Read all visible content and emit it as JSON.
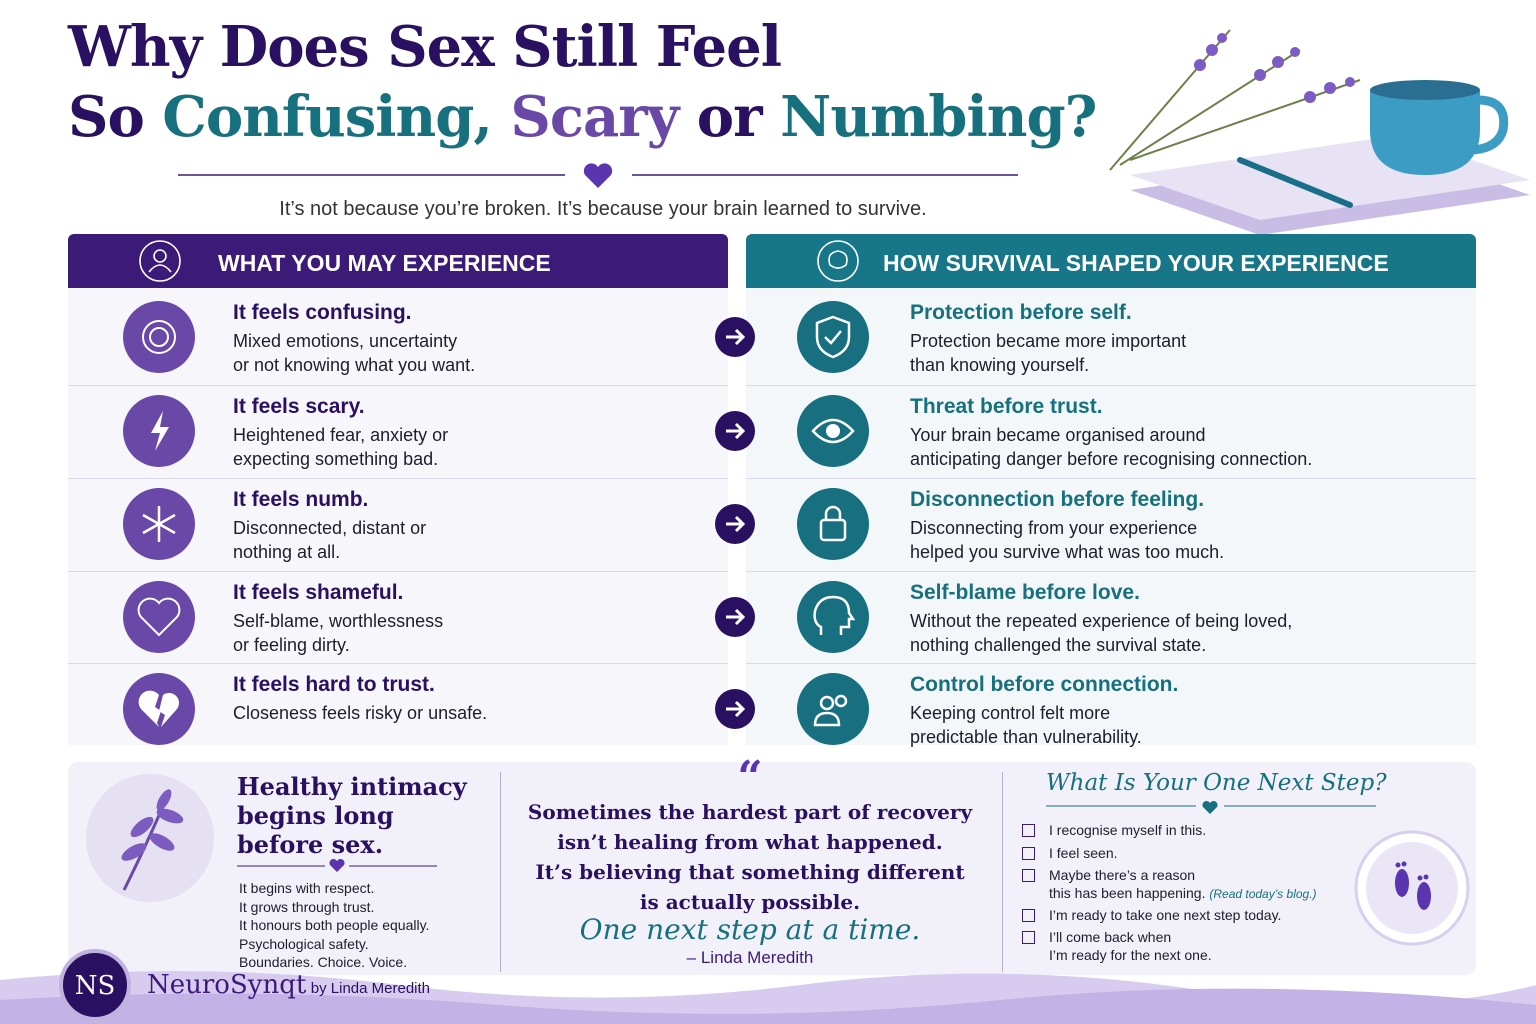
{
  "header": {
    "title_line1": "Why Does Sex Still Feel",
    "title_line2": [
      {
        "text": "So",
        "color": "#2a1060"
      },
      {
        "text": "Confusing,",
        "color": "#16707e"
      },
      {
        "text": "Scary",
        "color": "#6a48a8"
      },
      {
        "text": "or",
        "color": "#2a1060"
      },
      {
        "text": "Numbing?",
        "color": "#16707e"
      }
    ],
    "subtitle": "It’s not because you’re broken. It’s because your brain learned to survive."
  },
  "left_panel": {
    "heading": "WHAT YOU MAY EXPERIENCE",
    "items": [
      {
        "title": "It feels confusing.",
        "lines": [
          "Mixed emotions, uncertainty",
          "or not knowing what you want."
        ]
      },
      {
        "title": "It feels scary.",
        "lines": [
          "Heightened fear, anxiety or",
          "expecting something bad."
        ]
      },
      {
        "title": "It feels numb.",
        "lines": [
          "Disconnected, distant or",
          "nothing at all."
        ]
      },
      {
        "title": "It feels shameful.",
        "lines": [
          "Self-blame, worthlessness",
          "or feeling dirty."
        ]
      },
      {
        "title": "It feels hard to trust.",
        "lines": [
          "Closeness feels risky or unsafe."
        ]
      }
    ]
  },
  "right_panel": {
    "heading": "HOW SURVIVAL SHAPED YOUR EXPERIENCE",
    "items": [
      {
        "title": "Protection before self.",
        "lines": [
          "Protection became more important",
          "than knowing yourself."
        ]
      },
      {
        "title": "Threat before trust.",
        "lines": [
          "Your brain became organised around",
          "anticipating danger before recognising connection."
        ]
      },
      {
        "title": "Disconnection before feeling.",
        "lines": [
          "Disconnecting from your experience",
          "helped you survive what was too much."
        ]
      },
      {
        "title": "Self-blame before love.",
        "lines": [
          "Without the repeated experience of being loved,",
          "nothing challenged the survival state."
        ]
      },
      {
        "title": "Control before connection.",
        "lines": [
          "Keeping control felt more",
          "predictable than vulnerability."
        ]
      }
    ]
  },
  "intimacy": {
    "title_lines": [
      "Healthy intimacy",
      "begins long",
      "before sex."
    ],
    "lines": [
      "It begins with respect.",
      "It grows through trust.",
      "It honours both people equally.",
      "Psychological safety.",
      "Boundaries. Choice. Voice."
    ]
  },
  "quote": {
    "mark": "“",
    "lines": [
      "Sometimes the hardest part of recovery",
      "isn’t healing from what happened.",
      "It’s believing that something different",
      "is actually possible."
    ],
    "tagline": "One next step at a time.",
    "author": "– Linda Meredith"
  },
  "next_step": {
    "title": "What Is Your One Next Step?",
    "items": [
      {
        "lines": [
          "I recognise myself in this."
        ]
      },
      {
        "lines": [
          "I feel seen."
        ]
      },
      {
        "lines": [
          "Maybe there’s a reason",
          "this has been happening."
        ],
        "note": "(Read today’s blog.)"
      },
      {
        "lines": [
          "I’m ready to take one next step today."
        ]
      },
      {
        "lines": [
          "I’ll come back when",
          "I’m ready for the next one."
        ]
      }
    ]
  },
  "brand": {
    "logo": "NS",
    "name": "NeuroSynqt",
    "byline": "by Linda Meredith"
  }
}
